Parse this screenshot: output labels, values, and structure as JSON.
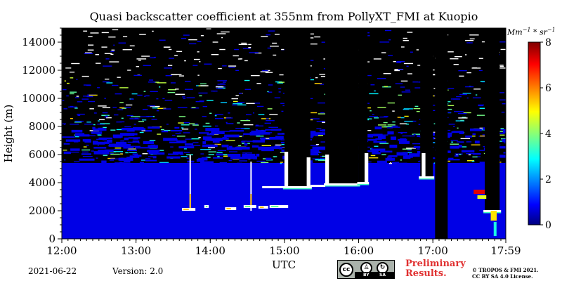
{
  "chart_data": {
    "type": "heatmap",
    "title": "Quasi backscatter coefficient at 355nm from PollyXT_FMI at Kuopio",
    "xlabel": "UTC",
    "ylabel": "Height (m)",
    "x_ticks": [
      "12:00",
      "13:00",
      "14:00",
      "15:00",
      "16:00",
      "17:00",
      "17:59"
    ],
    "x_tick_hours": [
      12.0,
      13.0,
      14.0,
      15.0,
      16.0,
      17.0,
      17.983
    ],
    "xlim_hours": [
      12.0,
      17.983
    ],
    "y_ticks": [
      0,
      2000,
      4000,
      6000,
      8000,
      10000,
      12000,
      14000
    ],
    "ylim": [
      0,
      15000
    ],
    "colorbar": {
      "unit_base": "Mm",
      "unit_exp1": "−1",
      "unit_mid": " * sr",
      "unit_exp2": "−1",
      "ticks": [
        0,
        2,
        4,
        6,
        8
      ],
      "range": [
        0,
        8
      ],
      "colormap": "jet",
      "range_colors": [
        "#0000ff",
        "#00ffff",
        "#ffff00",
        "#ff0000",
        "#800000"
      ]
    },
    "background_value": 0.8,
    "no_signal_color": "#000000",
    "no_data_color": "#ffffff",
    "cloud_features": [
      {
        "t_start": 15.0,
        "t_end": 15.35,
        "base_m": 3700,
        "top_m": 15000
      },
      {
        "t_start": 15.55,
        "t_end": 16.0,
        "base_m": 3900,
        "top_m": 15000
      },
      {
        "t_start": 16.0,
        "t_end": 16.12,
        "base_m": 4000,
        "top_m": 15000
      },
      {
        "t_start": 16.83,
        "t_end": 17.0,
        "base_m": 4400,
        "top_m": 15000
      },
      {
        "t_start": 17.03,
        "t_end": 17.2,
        "base_m": 0,
        "top_m": 15000
      },
      {
        "t_start": 17.7,
        "t_end": 17.9,
        "base_m": 2000,
        "top_m": 15000
      }
    ],
    "precipitation_streaks": [
      {
        "t": 13.73,
        "from_m": 2000,
        "to_m": 6000
      },
      {
        "t": 14.55,
        "from_m": 2000,
        "to_m": 5500
      }
    ],
    "low_clouds": [
      {
        "t_start": 13.62,
        "t_end": 13.8,
        "height_m": 2100
      },
      {
        "t_start": 13.92,
        "t_end": 13.98,
        "height_m": 2300
      },
      {
        "t_start": 14.2,
        "t_end": 14.35,
        "height_m": 2150
      },
      {
        "t_start": 14.45,
        "t_end": 14.62,
        "height_m": 2300
      },
      {
        "t_start": 14.65,
        "t_end": 14.78,
        "height_m": 2250
      },
      {
        "t_start": 14.8,
        "t_end": 15.05,
        "height_m": 2300
      }
    ]
  },
  "footer": {
    "date": "2021-06-22",
    "version": "Version: 2.0",
    "license_badge": {
      "cc": "cc",
      "by": "BY",
      "sa": "SA"
    },
    "preliminary_line1": "Preliminary",
    "preliminary_line2": "Results.",
    "copyright_line1": "© TROPOS & FMI 2021.",
    "copyright_line2": "CC BY SA 4.0 License."
  }
}
